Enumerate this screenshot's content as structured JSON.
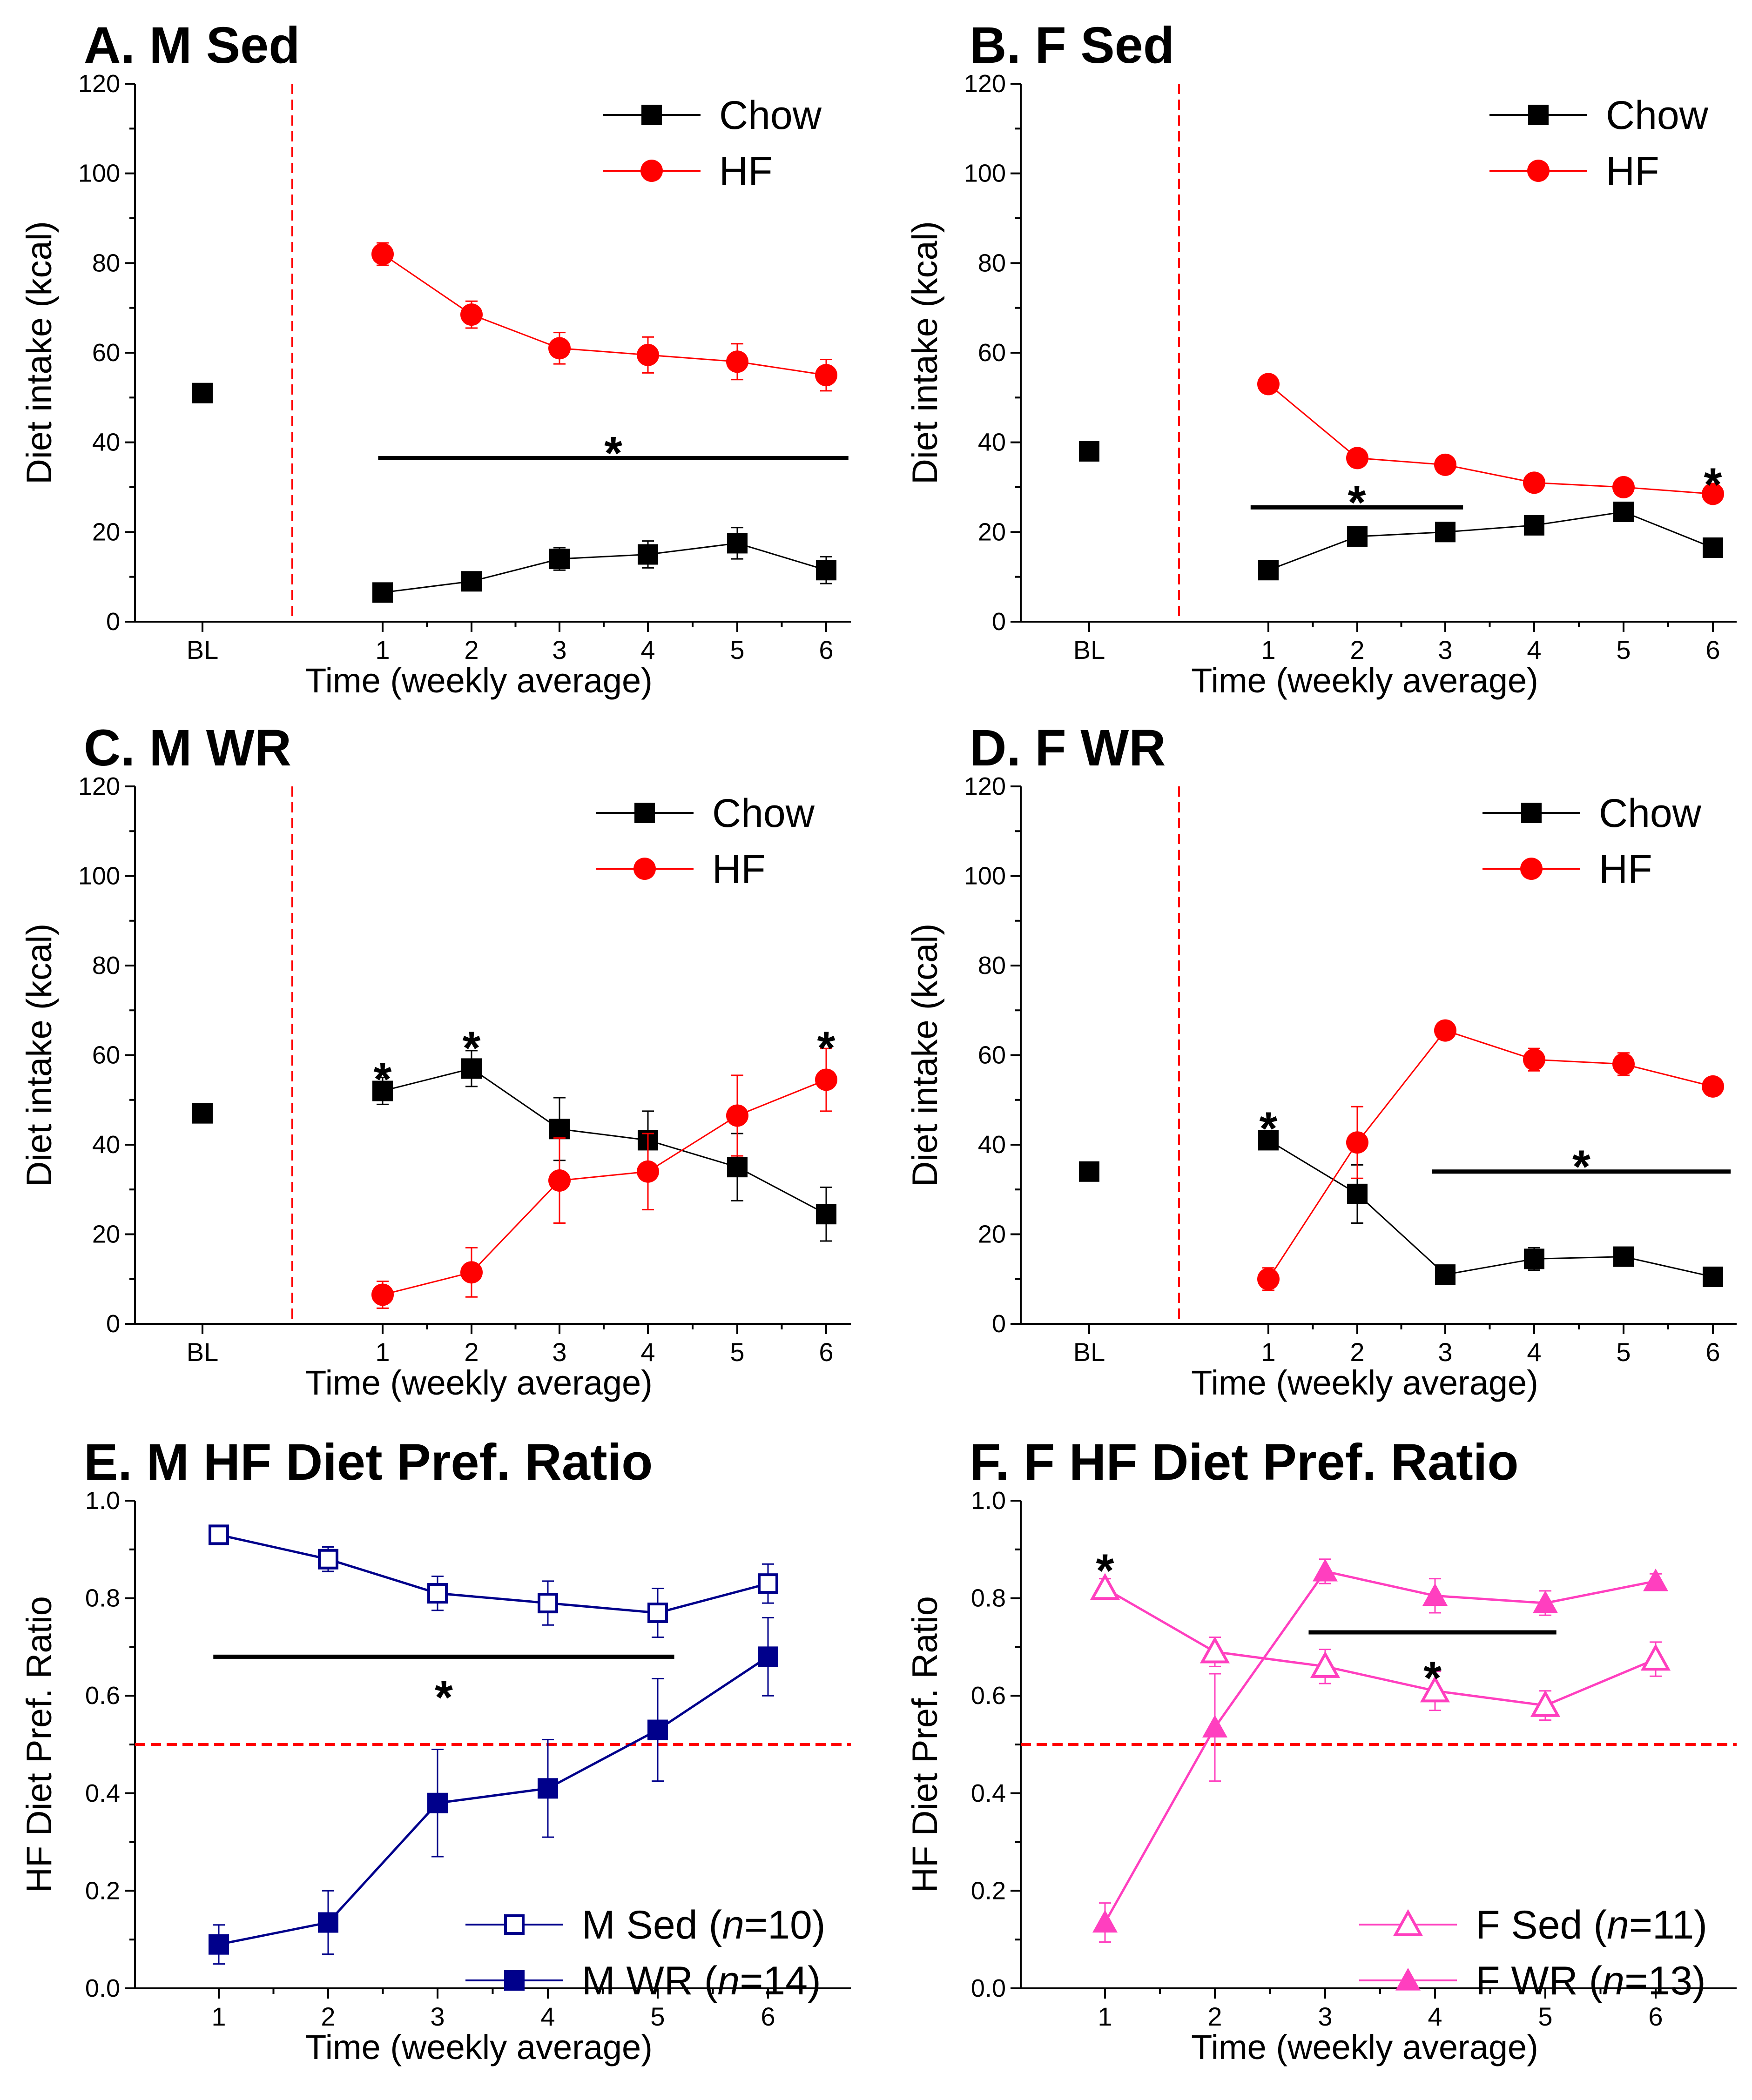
{
  "figure": {
    "description_title": "Diet intake and HF diet preference ratio"
  },
  "chart_data": [
    {
      "id": "A",
      "type": "line",
      "title": "A. M Sed",
      "xlabel": "Time (weekly average)",
      "ylabel": "Diet intake (kcal)",
      "ylim": [
        0,
        120
      ],
      "yticks": [
        "0",
        "20",
        "40",
        "60",
        "80",
        "100",
        "120"
      ],
      "xticks": [
        "BL",
        "1",
        "2",
        "3",
        "4",
        "5",
        "6"
      ],
      "baseline": {
        "label": "BL",
        "value": 51
      },
      "legend": [
        "Chow",
        "HF"
      ],
      "series": [
        {
          "name": "Chow",
          "color": "#000000",
          "marker": "square-filled",
          "values": [
            6.5,
            9,
            14,
            15,
            17.5,
            11.5
          ],
          "errors": [
            1,
            1.5,
            2.5,
            3,
            3.5,
            3
          ]
        },
        {
          "name": "HF",
          "color": "#ff0000",
          "marker": "circle-filled",
          "values": [
            82,
            68.5,
            61,
            59.5,
            58,
            55
          ],
          "errors": [
            2.5,
            3,
            3.5,
            4,
            4,
            3.5
          ]
        }
      ],
      "annotations": [
        {
          "text": "*",
          "bar_from": 0.95,
          "bar_to": 6.25,
          "bar_y": 36.5,
          "text_y": 38
        }
      ],
      "stars": []
    },
    {
      "id": "B",
      "type": "line",
      "title": "B. F Sed",
      "xlabel": "Time (weekly average)",
      "ylabel": "Diet intake (kcal)",
      "ylim": [
        0,
        120
      ],
      "yticks": [
        "0",
        "20",
        "40",
        "60",
        "80",
        "100",
        "120"
      ],
      "xticks": [
        "BL",
        "1",
        "2",
        "3",
        "4",
        "5",
        "6"
      ],
      "baseline": {
        "label": "BL",
        "value": 38
      },
      "legend": [
        "Chow",
        "HF"
      ],
      "series": [
        {
          "name": "Chow",
          "color": "#000000",
          "marker": "square-filled",
          "values": [
            11.5,
            19,
            20,
            21.5,
            24.5,
            16.5
          ],
          "errors": [
            1,
            1.5,
            1.5,
            1.5,
            1.5,
            1.5
          ]
        },
        {
          "name": "HF",
          "color": "#ff0000",
          "marker": "circle-filled",
          "values": [
            53,
            36.5,
            35,
            31,
            30,
            28.5
          ],
          "errors": [
            1.5,
            1.5,
            1.5,
            1.5,
            1.5,
            1.5
          ]
        }
      ],
      "annotations": [
        {
          "text": "*",
          "bar_from": 0.8,
          "bar_to": 3.2,
          "bar_y": 25.5,
          "text_y": 27
        }
      ],
      "stars": [
        {
          "text": "*",
          "x": 6,
          "y": 31
        }
      ]
    },
    {
      "id": "C",
      "type": "line",
      "title": "C. M WR",
      "xlabel": "Time (weekly average)",
      "ylabel": "Diet intake (kcal)",
      "ylim": [
        0,
        120
      ],
      "yticks": [
        "0",
        "20",
        "40",
        "60",
        "80",
        "100",
        "120"
      ],
      "xticks": [
        "BL",
        "1",
        "2",
        "3",
        "4",
        "5",
        "6"
      ],
      "baseline": {
        "label": "BL",
        "value": 47
      },
      "legend": [
        "Chow",
        "HF"
      ],
      "series": [
        {
          "name": "Chow",
          "color": "#000000",
          "marker": "square-filled",
          "values": [
            52,
            57,
            43.5,
            41,
            35,
            24.5
          ],
          "errors": [
            3,
            4,
            7,
            6.5,
            7.5,
            6
          ]
        },
        {
          "name": "HF",
          "color": "#ff0000",
          "marker": "circle-filled",
          "values": [
            6.5,
            11.5,
            32,
            34,
            46.5,
            54.5
          ],
          "errors": [
            3,
            5.5,
            9.5,
            8.5,
            9,
            7
          ]
        }
      ],
      "annotations": [],
      "stars": [
        {
          "text": "*",
          "x": 1,
          "y": 55
        },
        {
          "text": "*",
          "x": 2,
          "y": 62
        },
        {
          "text": "*",
          "x": 6,
          "y": 62
        }
      ]
    },
    {
      "id": "D",
      "type": "line",
      "title": "D. F WR",
      "xlabel": "Time (weekly average)",
      "ylabel": "Diet intake (kcal)",
      "ylim": [
        0,
        120
      ],
      "yticks": [
        "0",
        "20",
        "40",
        "60",
        "80",
        "100",
        "120"
      ],
      "xticks": [
        "BL",
        "1",
        "2",
        "3",
        "4",
        "5",
        "6"
      ],
      "baseline": {
        "label": "BL",
        "value": 34
      },
      "legend": [
        "Chow",
        "HF"
      ],
      "series": [
        {
          "name": "Chow",
          "color": "#000000",
          "marker": "square-filled",
          "values": [
            41,
            29,
            11,
            14.5,
            15,
            10.5
          ],
          "errors": [
            1.5,
            6.5,
            1,
            2.5,
            1.5,
            1
          ]
        },
        {
          "name": "HF",
          "color": "#ff0000",
          "marker": "circle-filled",
          "values": [
            10,
            40.5,
            65.5,
            59,
            58,
            53
          ],
          "errors": [
            2.5,
            8,
            1.5,
            2.5,
            2.5,
            1.5
          ]
        }
      ],
      "annotations": [
        {
          "text": "*",
          "bar_from": 2.85,
          "bar_to": 6.2,
          "bar_y": 34,
          "text_y": 35.5
        }
      ],
      "stars": [
        {
          "text": "*",
          "x": 1,
          "y": 44
        }
      ]
    },
    {
      "id": "E",
      "type": "line",
      "title": "E. M HF Diet Pref. Ratio",
      "xlabel": "Time (weekly average)",
      "ylabel": "HF Diet Pref. Ratio",
      "ylim": [
        0,
        1.0
      ],
      "yticks": [
        "0.0",
        "0.2",
        "0.4",
        "0.6",
        "0.8",
        "1.0"
      ],
      "xticks": [
        "1",
        "2",
        "3",
        "4",
        "5",
        "6"
      ],
      "ref_line": 0.5,
      "legend": [
        "M Sed (n=10)",
        "M WR (n=14)"
      ],
      "legend_items": [
        {
          "prefix": "M Sed (",
          "italic": "n",
          "suffix": "=10)"
        },
        {
          "prefix": "M WR (",
          "italic": "n",
          "suffix": "=14)"
        }
      ],
      "series": [
        {
          "name": "M Sed (n=10)",
          "color": "#00008b",
          "marker": "square-open",
          "values": [
            0.93,
            0.88,
            0.81,
            0.79,
            0.77,
            0.83
          ],
          "errors": [
            0.01,
            0.025,
            0.035,
            0.045,
            0.05,
            0.04
          ]
        },
        {
          "name": "M WR (n=14)",
          "color": "#00008b",
          "marker": "square-filled",
          "values": [
            0.09,
            0.135,
            0.38,
            0.41,
            0.53,
            0.68
          ],
          "errors": [
            0.04,
            0.065,
            0.11,
            0.1,
            0.105,
            0.08
          ]
        }
      ],
      "annotations": [
        {
          "text": "*",
          "bar_from": 0.95,
          "bar_to": 5.15,
          "bar_y": 0.68,
          "text_y": 0.6
        }
      ],
      "stars": []
    },
    {
      "id": "F",
      "type": "line",
      "title": "F. F HF Diet Pref. Ratio",
      "xlabel": "Time (weekly average)",
      "ylabel": "HF Diet Pref. Ratio",
      "ylim": [
        0,
        1.0
      ],
      "yticks": [
        "0.0",
        "0.2",
        "0.4",
        "0.6",
        "0.8",
        "1.0"
      ],
      "xticks": [
        "1",
        "2",
        "3",
        "4",
        "5",
        "6"
      ],
      "ref_line": 0.5,
      "legend": [
        "F Sed (n=11)",
        "F WR (n=13)"
      ],
      "legend_items": [
        {
          "prefix": "F Sed (",
          "italic": "n",
          "suffix": "=11)"
        },
        {
          "prefix": "F WR (",
          "italic": "n",
          "suffix": "=13)"
        }
      ],
      "series": [
        {
          "name": "F Sed (n=11)",
          "color": "#ff3fbf",
          "marker": "triangle-open",
          "values": [
            0.82,
            0.69,
            0.66,
            0.61,
            0.58,
            0.675
          ],
          "errors": [
            0.02,
            0.03,
            0.035,
            0.04,
            0.03,
            0.035
          ]
        },
        {
          "name": "F WR (n=13)",
          "color": "#ff3fbf",
          "marker": "triangle-filled",
          "values": [
            0.135,
            0.535,
            0.855,
            0.805,
            0.79,
            0.835
          ],
          "errors": [
            0.04,
            0.11,
            0.025,
            0.035,
            0.025,
            0.015
          ]
        }
      ],
      "annotations": [
        {
          "text": "*",
          "bar_from": 2.85,
          "bar_to": 5.1,
          "bar_y": 0.73,
          "text_y": 0.64
        }
      ],
      "stars": [
        {
          "text": "*",
          "x": 1,
          "y": 0.86
        }
      ]
    }
  ]
}
